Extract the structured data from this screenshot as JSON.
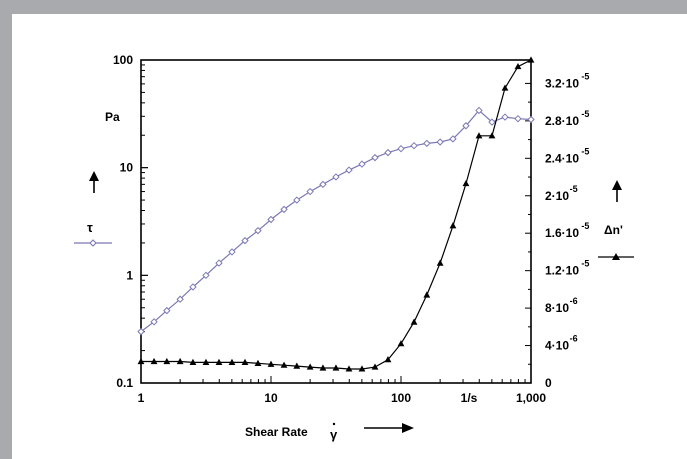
{
  "chart_data": {
    "type": "line",
    "xlabel": "Shear Rate",
    "xlabel_symbol": "γ",
    "x_scale": "log",
    "xlim": [
      1,
      1000
    ],
    "x_ticks": [
      "1",
      "10",
      "100",
      "1/s",
      "1,000"
    ],
    "y_left": {
      "unit": "Pa",
      "symbol": "τ",
      "scale": "log",
      "ylim": [
        0.1,
        100
      ],
      "ticks": [
        "0.1",
        "1",
        "10",
        "100"
      ]
    },
    "y_right": {
      "symbol": "Δn'",
      "scale": "linear",
      "ylim": [
        0,
        3.45e-05
      ],
      "ticks": [
        {
          "v": 0,
          "base": "0",
          "exp": ""
        },
        {
          "v": 4e-06,
          "base": "4·10",
          "exp": "-6"
        },
        {
          "v": 8e-06,
          "base": "8·10",
          "exp": "-6"
        },
        {
          "v": 1.2e-05,
          "base": "1.2·10",
          "exp": "-5"
        },
        {
          "v": 1.6e-05,
          "base": "1.6·10",
          "exp": "-5"
        },
        {
          "v": 2e-05,
          "base": "2·10",
          "exp": "-5"
        },
        {
          "v": 2.4e-05,
          "base": "2.4·10",
          "exp": "-5"
        },
        {
          "v": 2.8e-05,
          "base": "2.8·10",
          "exp": "-5"
        },
        {
          "v": 3.2e-05,
          "base": "3.2·10",
          "exp": "-5"
        }
      ]
    },
    "series": [
      {
        "symbol": "τ",
        "axis": "left",
        "marker": "open-diamond",
        "color": "#7b78b4",
        "x": [
          1,
          1.26,
          1.58,
          2,
          2.51,
          3.16,
          3.98,
          5.01,
          6.31,
          7.94,
          10,
          12.6,
          15.8,
          20,
          25.1,
          31.6,
          39.8,
          50.1,
          63.1,
          79.4,
          100,
          126,
          158,
          200,
          251,
          316,
          398,
          501,
          631,
          794,
          1000
        ],
        "y": [
          0.3,
          0.37,
          0.47,
          0.6,
          0.78,
          1.0,
          1.3,
          1.65,
          2.1,
          2.6,
          3.3,
          4.1,
          5.0,
          6.0,
          7.0,
          8.2,
          9.5,
          10.8,
          12.4,
          13.8,
          15.0,
          16.0,
          16.8,
          17.3,
          18.5,
          24.5,
          34.0,
          26.5,
          29.5,
          28.5,
          28.0
        ]
      },
      {
        "symbol": "Δn'",
        "axis": "right",
        "marker": "filled-triangle",
        "color": "#000000",
        "x": [
          1,
          1.26,
          1.58,
          2,
          2.51,
          3.16,
          3.98,
          5.01,
          6.31,
          7.94,
          10,
          12.6,
          15.8,
          20,
          25.1,
          31.6,
          39.8,
          50.1,
          63.1,
          79.4,
          100,
          126,
          158,
          200,
          251,
          316,
          398,
          501,
          631,
          794,
          1000
        ],
        "y": [
          2.3e-06,
          2.3e-06,
          2.3e-06,
          2.3e-06,
          2.2e-06,
          2.2e-06,
          2.2e-06,
          2.2e-06,
          2.2e-06,
          2.1e-06,
          2e-06,
          1.9e-06,
          1.8e-06,
          1.7e-06,
          1.6e-06,
          1.6e-06,
          1.5e-06,
          1.5e-06,
          1.7e-06,
          2.5e-06,
          4.2e-06,
          6.5e-06,
          9.4e-06,
          1.28e-05,
          1.68e-05,
          2.13e-05,
          2.64e-05,
          2.64e-05,
          3.15e-05,
          3.38e-05,
          3.45e-05
        ]
      }
    ]
  }
}
